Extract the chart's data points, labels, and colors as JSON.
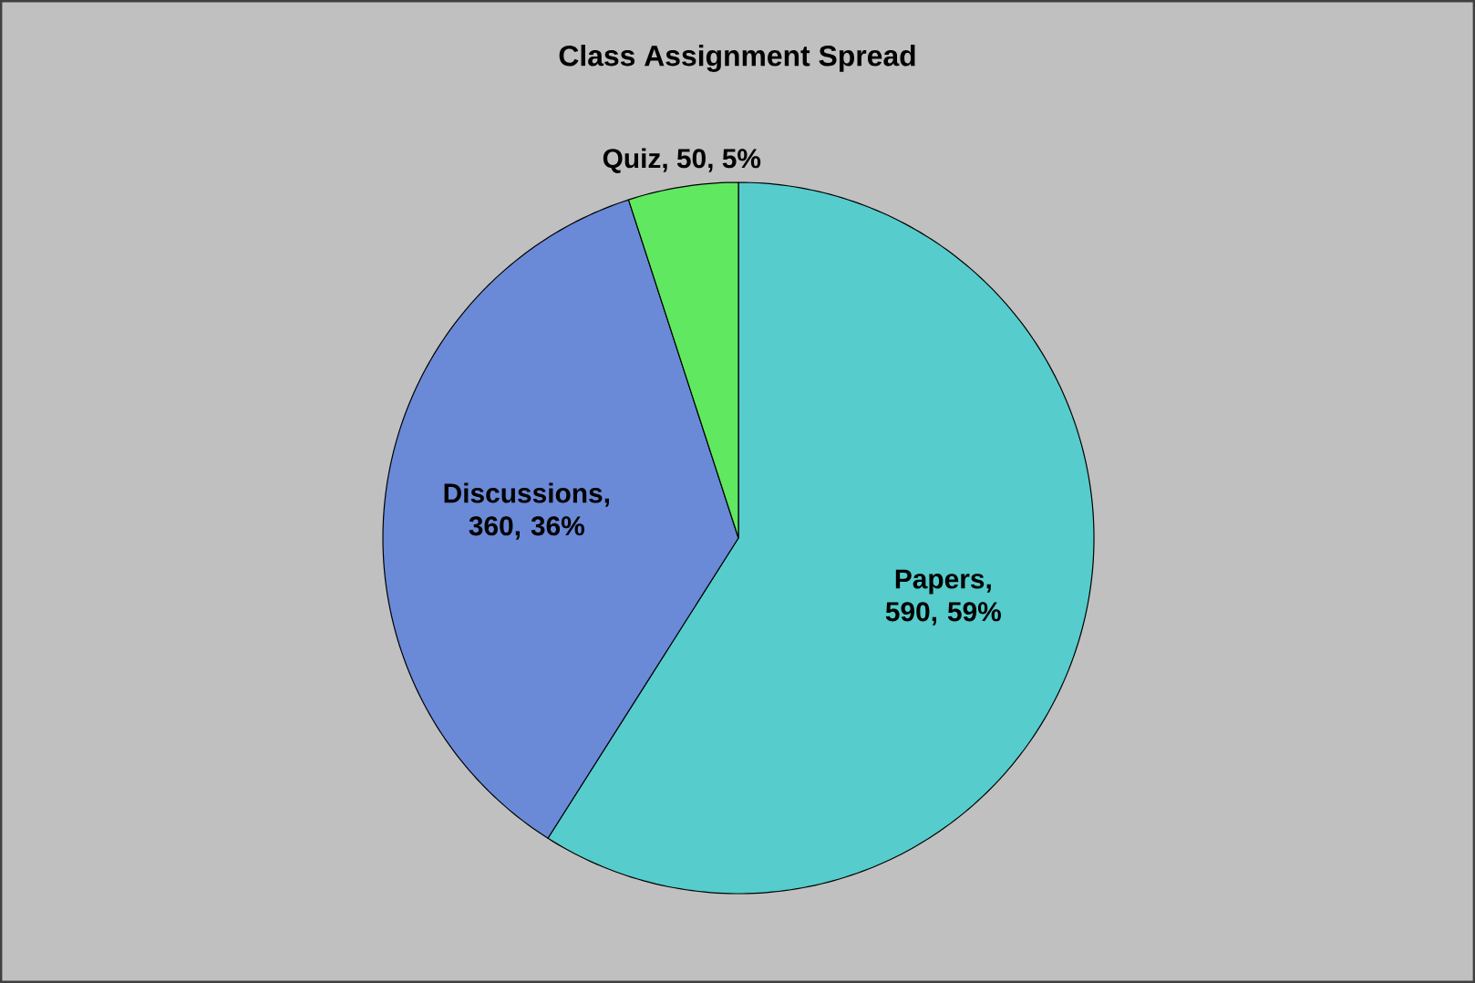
{
  "chart_data": {
    "type": "pie",
    "title": "Class Assignment Spread",
    "categories": [
      "Papers",
      "Discussions",
      "Quiz"
    ],
    "values": [
      590,
      360,
      50
    ],
    "colors": [
      "#56cccc",
      "#6a8ad8",
      "#60e860"
    ],
    "value_labels": [
      ", 590, 59%",
      ", 360, 36%",
      ", 50, 5%"
    ]
  }
}
